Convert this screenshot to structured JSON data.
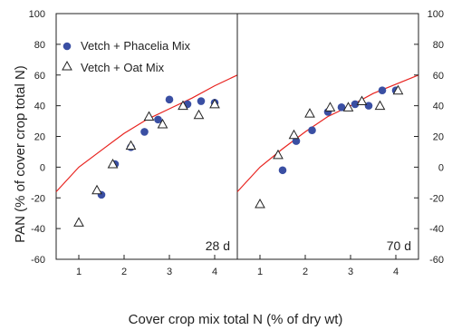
{
  "chart_data": {
    "type": "scatter",
    "ylabel": "PAN (% of cover crop total N)",
    "xlabel": "Cover crop mix total N (% of dry wt)",
    "ylim": [
      -60,
      100
    ],
    "xlim": [
      0.5,
      4.5
    ],
    "y_ticks": [
      -60,
      -40,
      -20,
      0,
      20,
      40,
      60,
      80,
      100
    ],
    "x_ticks": [
      1,
      2,
      3,
      4
    ],
    "grid": false,
    "legend_position": "top-left",
    "legend": [
      "Vetch + Phacelia Mix",
      "Vetch + Oat Mix"
    ],
    "colors": {
      "phacelia": "#3a4fa3",
      "oat_stroke": "#222222",
      "fit": "#e8231f",
      "axis": "#222222"
    },
    "panels": [
      {
        "label": "28 d",
        "series": [
          {
            "name": "Vetch + Phacelia Mix",
            "marker": "circle",
            "x": [
              1.5,
              1.8,
              2.15,
              2.45,
              2.75,
              3.0,
              3.4,
              3.7,
              4.0
            ],
            "y": [
              -18,
              2,
              13,
              23,
              31,
              44,
              41,
              43,
              42
            ]
          },
          {
            "name": "Vetch + Oat Mix",
            "marker": "triangle",
            "x": [
              1.0,
              1.4,
              1.75,
              2.15,
              2.55,
              2.85,
              3.3,
              3.65,
              4.0
            ],
            "y": [
              -36,
              -15,
              2,
              14,
              33,
              28,
              40,
              34,
              41
            ]
          }
        ],
        "fit": {
          "x": [
            0.5,
            1.0,
            1.5,
            2.0,
            2.5,
            3.0,
            3.5,
            4.0,
            4.5
          ],
          "y": [
            -16,
            0,
            11,
            22,
            31,
            38,
            45,
            53,
            60
          ]
        }
      },
      {
        "label": "70 d",
        "series": [
          {
            "name": "Vetch + Phacelia Mix",
            "marker": "circle",
            "x": [
              1.5,
              1.8,
              2.15,
              2.5,
              2.8,
              3.1,
              3.4,
              3.7,
              4.0
            ],
            "y": [
              -2,
              17,
              24,
              36,
              39,
              41,
              40,
              50,
              50
            ]
          },
          {
            "name": "Vetch + Oat Mix",
            "marker": "triangle",
            "x": [
              1.0,
              1.4,
              1.75,
              2.1,
              2.55,
              2.95,
              3.25,
              3.65,
              4.05
            ],
            "y": [
              -24,
              8,
              21,
              35,
              39,
              39,
              43,
              40,
              50
            ]
          }
        ],
        "fit": {
          "x": [
            0.5,
            1.0,
            1.5,
            2.0,
            2.5,
            3.0,
            3.5,
            4.0,
            4.5
          ],
          "y": [
            -16,
            0,
            12,
            23,
            33,
            40,
            48,
            54,
            60
          ]
        }
      }
    ]
  }
}
